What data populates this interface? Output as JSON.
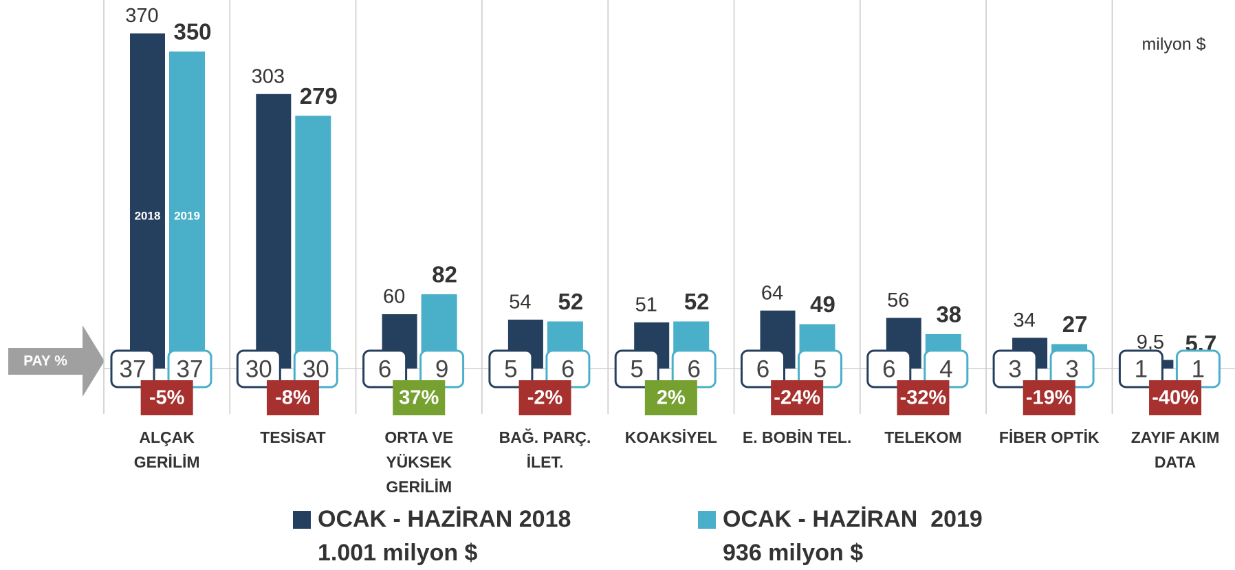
{
  "chart_data": {
    "type": "bar",
    "unit": "milyon $",
    "share_label": "PAY %",
    "categories": [
      "ALÇAK\nGERİLİM",
      "TESİSAT",
      "ORTA VE\nYÜKSEK\nGERİLİM",
      "BAĞ. PARÇ.\nİLET.",
      "KOAKSİYEL",
      "E. BOBİN TEL.",
      "TELEKOM",
      "FİBER OPTİK",
      "ZAYIF AKIM\nDATA"
    ],
    "series": [
      {
        "name": "OCAK - HAZİRAN 2018",
        "total": "1.001 milyon $",
        "inner_label": "2018",
        "color": "#253f5e",
        "values": [
          370,
          303,
          60,
          54,
          51,
          64,
          56,
          34,
          9.5
        ],
        "value_labels": [
          "370",
          "303",
          "60",
          "54",
          "51",
          "64",
          "56",
          "34",
          "9,5"
        ],
        "shares": [
          37,
          30,
          6,
          5,
          5,
          6,
          6,
          3,
          1
        ]
      },
      {
        "name": "OCAK - HAZİRAN  2019",
        "total": "936 milyon $",
        "inner_label": "2019",
        "color": "#4aafc9",
        "values": [
          350,
          279,
          82,
          52,
          52,
          49,
          38,
          27,
          5.7
        ],
        "shares": [
          37,
          30,
          9,
          6,
          6,
          5,
          4,
          3,
          1
        ]
      }
    ],
    "change": [
      -5,
      -8,
      37,
      -2,
      2,
      -24,
      -32,
      -19,
      -40
    ],
    "change_labels": [
      "-5%",
      "-8%",
      "37%",
      "-2%",
      "2%",
      "-24%",
      "-32%",
      "-19%",
      "-40%"
    ],
    "positive_color": "#76a02f",
    "negative_color": "#a6312f",
    "ylim": [
      0,
      400
    ]
  }
}
